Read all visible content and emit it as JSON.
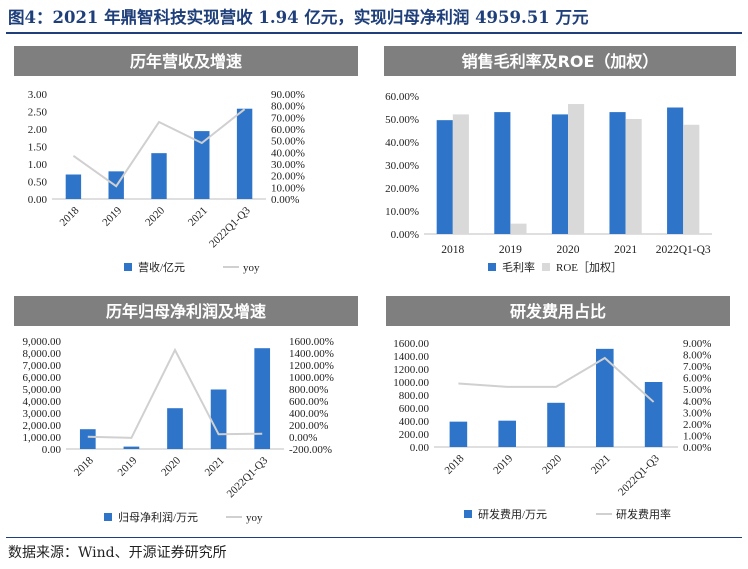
{
  "figure": {
    "title": "图4：2021 年鼎智科技实现营收 1.94 亿元，实现归母净利润 4959.51 万元",
    "source": "数据来源：Wind、开源证券研究所"
  },
  "colors": {
    "bar_blue": "#2e75c9",
    "bar_grey": "#d9d9d9",
    "line_grey": "#d0d0d0",
    "header_bg": "#7f7f7f",
    "title_navy": "#1f3f7a"
  },
  "chart_data": [
    {
      "type": "bar",
      "title": "历年营收及增速",
      "categories": [
        "2018",
        "2019",
        "2020",
        "2021",
        "2022Q1-Q3"
      ],
      "series": [
        {
          "name": "营收/亿元",
          "type": "bar",
          "axis": "left",
          "values": [
            0.7,
            0.79,
            1.31,
            1.94,
            2.58
          ]
        },
        {
          "name": "yoy",
          "type": "line",
          "axis": "right",
          "values": [
            0.37,
            0.11,
            0.66,
            0.48,
            0.77
          ]
        }
      ],
      "left_axis": {
        "min": 0,
        "max": 3.0,
        "step": 0.5,
        "decimals": 2,
        "ticks": [
          "0.00",
          "0.50",
          "1.00",
          "1.50",
          "2.00",
          "2.50",
          "3.00"
        ]
      },
      "right_axis": {
        "min": 0,
        "max": 0.9,
        "step": 0.1,
        "percent": true,
        "ticks": [
          "0.00%",
          "10.00%",
          "20.00%",
          "30.00%",
          "40.00%",
          "50.00%",
          "60.00%",
          "70.00%",
          "80.00%",
          "90.00%"
        ]
      },
      "xlabel_rotated": true,
      "legend_position": "bottom"
    },
    {
      "type": "bar",
      "title": "销售毛利率及ROE（加权）",
      "categories": [
        "2018",
        "2019",
        "2020",
        "2021",
        "2022Q1-Q3"
      ],
      "series": [
        {
          "name": "毛利率",
          "type": "bar",
          "axis": "left",
          "values": [
            0.495,
            0.53,
            0.52,
            0.53,
            0.55
          ]
        },
        {
          "name": "ROE［加权］",
          "type": "bar",
          "axis": "left",
          "values": [
            0.52,
            0.045,
            0.565,
            0.5,
            0.475
          ]
        }
      ],
      "left_axis": {
        "min": 0,
        "max": 0.6,
        "step": 0.1,
        "percent": true,
        "ticks": [
          "0.00%",
          "10.00%",
          "20.00%",
          "30.00%",
          "40.00%",
          "50.00%",
          "60.00%"
        ]
      },
      "xlabel_rotated": false,
      "legend_position": "bottom"
    },
    {
      "type": "bar",
      "title": "历年归母净利润及增速",
      "categories": [
        "2018",
        "2019",
        "2020",
        "2021",
        "2022Q1-Q3"
      ],
      "series": [
        {
          "name": "归母净利润/万元",
          "type": "bar",
          "axis": "left",
          "values": [
            1650,
            200,
            3400,
            4959.51,
            8400
          ]
        },
        {
          "name": "yoy",
          "type": "line",
          "axis": "right",
          "values": [
            0.05,
            -0.15,
            14.5,
            0.45,
            0.55
          ]
        }
      ],
      "left_axis": {
        "min": 0,
        "max": 9000,
        "step": 1000,
        "decimals": 2,
        "thousands": true,
        "ticks": [
          "0.00",
          "1,000.00",
          "2,000.00",
          "3,000.00",
          "4,000.00",
          "5,000.00",
          "6,000.00",
          "7,000.00",
          "8,000.00",
          "9,000.00"
        ]
      },
      "right_axis": {
        "min": -2,
        "max": 16,
        "step": 2,
        "percent": true,
        "ticks": [
          "-200.00%",
          "0.00%",
          "200.00%",
          "400.00%",
          "600.00%",
          "800.00%",
          "1000.00%",
          "1200.00%",
          "1400.00%",
          "1600.00%"
        ]
      },
      "xlabel_rotated": true,
      "legend_position": "bottom"
    },
    {
      "type": "bar",
      "title": "研发费用占比",
      "categories": [
        "2018",
        "2019",
        "2020",
        "2021",
        "2022Q1-Q3"
      ],
      "series": [
        {
          "name": "研发费用/万元",
          "type": "bar",
          "axis": "left",
          "values": [
            390,
            405,
            680,
            1510,
            1000
          ]
        },
        {
          "name": "研发费用率",
          "type": "line",
          "axis": "right",
          "values": [
            0.055,
            0.052,
            0.052,
            0.077,
            0.039
          ]
        }
      ],
      "left_axis": {
        "min": 0,
        "max": 1600,
        "step": 200,
        "decimals": 2,
        "ticks": [
          "0.00",
          "200.00",
          "400.00",
          "600.00",
          "800.00",
          "1000.00",
          "1200.00",
          "1400.00",
          "1600.00"
        ]
      },
      "right_axis": {
        "min": 0,
        "max": 0.09,
        "step": 0.01,
        "percent": true,
        "ticks": [
          "0.00%",
          "1.00%",
          "2.00%",
          "3.00%",
          "4.00%",
          "5.00%",
          "6.00%",
          "7.00%",
          "8.00%",
          "9.00%"
        ]
      },
      "xlabel_rotated": true,
      "legend_position": "bottom"
    }
  ]
}
